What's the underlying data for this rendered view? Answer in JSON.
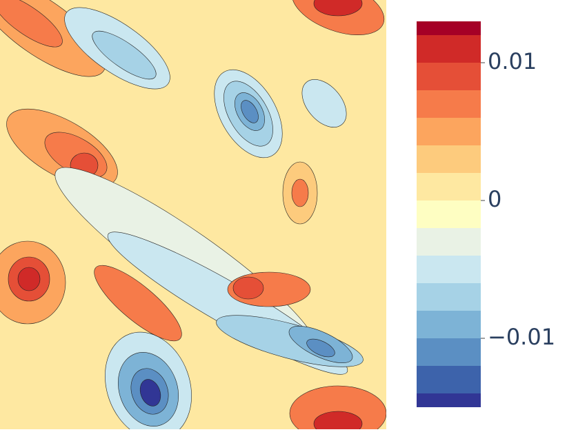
{
  "chart_data": {
    "type": "contour",
    "levels": [
      -0.015,
      -0.014,
      -0.012,
      -0.01,
      -0.008,
      -0.006,
      -0.004,
      -0.002,
      0,
      0.002,
      0.004,
      0.006,
      0.008,
      0.01,
      0.012,
      0.013
    ],
    "colors": [
      "#313695",
      "#3d63ab",
      "#5b8fc3",
      "#7db3d6",
      "#a6d2e6",
      "#cae7f0",
      "#e9f2e5",
      "#fefec2",
      "#fee8a1",
      "#fdcb7d",
      "#fca55e",
      "#f67b4a",
      "#e54f37",
      "#d02a28",
      "#a50026"
    ],
    "colorbar_lim": [
      -0.015,
      0.013
    ],
    "colorbar_ticks": [
      {
        "value": -0.01,
        "label": "−0.01"
      },
      0,
      0.01
    ]
  }
}
